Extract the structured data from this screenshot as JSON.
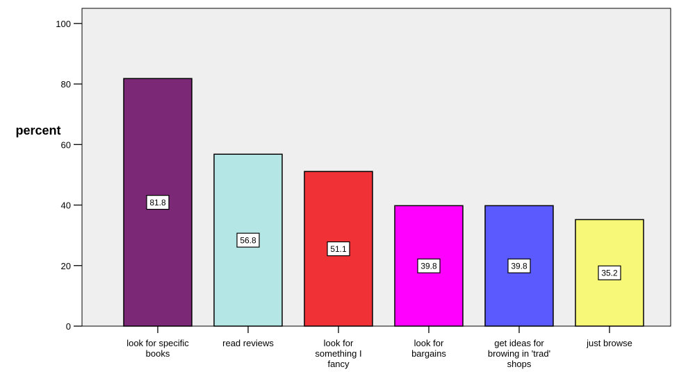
{
  "chart_data": {
    "type": "bar",
    "title": "",
    "xlabel": "",
    "ylabel": "percent",
    "ylim": [
      0,
      105
    ],
    "yticks": [
      0,
      20,
      40,
      60,
      80,
      100
    ],
    "grid": false,
    "categories": [
      [
        "look for specific",
        "books"
      ],
      [
        "read reviews"
      ],
      [
        "look for",
        "something I",
        "fancy"
      ],
      [
        "look for",
        "bargains"
      ],
      [
        "get ideas for",
        "browing in 'trad'",
        "shops"
      ],
      [
        "just browse"
      ]
    ],
    "values": [
      81.8,
      56.8,
      51.1,
      39.8,
      39.8,
      35.2
    ],
    "data_labels": [
      "81.8",
      "56.8",
      "51.1",
      "39.8",
      "39.8",
      "35.2"
    ],
    "colors": [
      "#7b2876",
      "#b4e6e6",
      "#f03237",
      "#ff00ff",
      "#5a5aff",
      "#f8f878"
    ],
    "plot_background": "#efefef"
  }
}
